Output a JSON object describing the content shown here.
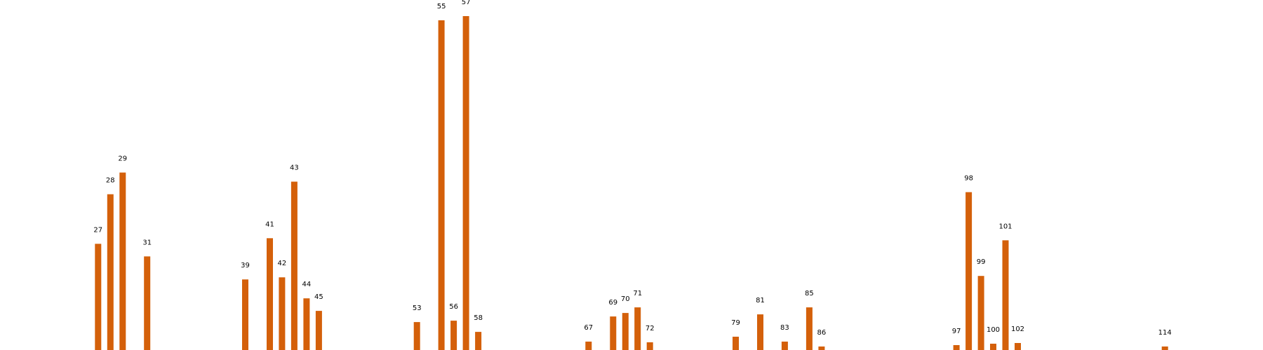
{
  "chart_data": {
    "type": "bar",
    "title": "",
    "xlabel": "",
    "ylabel": "",
    "bar_color": "#d4600a",
    "xlim": [
      19,
      122
    ],
    "ylim": [
      0,
      480
    ],
    "axes_visible": false,
    "grid": false,
    "legend": "none",
    "bars": [
      {
        "label": "27",
        "x": 27,
        "value": 152
      },
      {
        "label": "28",
        "x": 28,
        "value": 223
      },
      {
        "label": "29",
        "x": 29,
        "value": 254
      },
      {
        "label": "31",
        "x": 31,
        "value": 134
      },
      {
        "label": "39",
        "x": 39,
        "value": 101
      },
      {
        "label": "41",
        "x": 41,
        "value": 160
      },
      {
        "label": "42",
        "x": 42,
        "value": 104
      },
      {
        "label": "43",
        "x": 43,
        "value": 241
      },
      {
        "label": "44",
        "x": 44,
        "value": 74
      },
      {
        "label": "45",
        "x": 45,
        "value": 56
      },
      {
        "label": "53",
        "x": 53,
        "value": 40
      },
      {
        "label": "55",
        "x": 55,
        "value": 472
      },
      {
        "label": "56",
        "x": 56,
        "value": 42
      },
      {
        "label": "57",
        "x": 57,
        "value": 478
      },
      {
        "label": "58",
        "x": 58,
        "value": 26
      },
      {
        "label": "67",
        "x": 67,
        "value": 12
      },
      {
        "label": "69",
        "x": 69,
        "value": 48
      },
      {
        "label": "70",
        "x": 70,
        "value": 53
      },
      {
        "label": "71",
        "x": 71,
        "value": 61
      },
      {
        "label": "72",
        "x": 72,
        "value": 11
      },
      {
        "label": "79",
        "x": 79,
        "value": 19
      },
      {
        "label": "81",
        "x": 81,
        "value": 51
      },
      {
        "label": "83",
        "x": 83,
        "value": 12
      },
      {
        "label": "85",
        "x": 85,
        "value": 61
      },
      {
        "label": "86",
        "x": 86,
        "value": 5
      },
      {
        "label": "97",
        "x": 97,
        "value": 7
      },
      {
        "label": "98",
        "x": 98,
        "value": 226
      },
      {
        "label": "99",
        "x": 99,
        "value": 106
      },
      {
        "label": "100",
        "x": 100,
        "value": 9
      },
      {
        "label": "101",
        "x": 101,
        "value": 157
      },
      {
        "label": "102",
        "x": 102,
        "value": 10
      },
      {
        "label": "114",
        "x": 114,
        "value": 5
      }
    ]
  }
}
